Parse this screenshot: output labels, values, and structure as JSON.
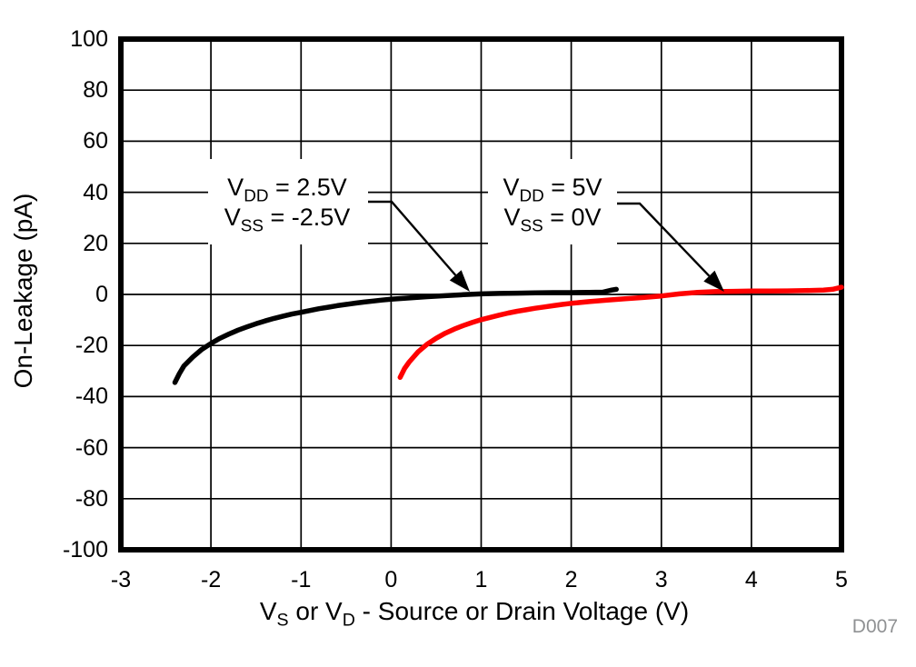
{
  "figure_id": "D007",
  "colors": {
    "black_series": "#000000",
    "red_series": "#ff0000",
    "grid": "#000000",
    "figure_id_gray": "#8f9193",
    "background": "#ffffff"
  },
  "chart_data": {
    "type": "line",
    "title": "",
    "ylabel": "On-Leakage (pA)",
    "xlabel_text": "VS or VD - Source or Drain Voltage (V)",
    "xlabel_parts": [
      {
        "t": "V"
      },
      {
        "s": "S"
      },
      {
        "t": " or V"
      },
      {
        "s": "D"
      },
      {
        "t": " - Source or Drain Voltage (V)"
      }
    ],
    "xlim": [
      -3,
      5
    ],
    "ylim": [
      -100,
      100
    ],
    "grid": true,
    "legend_position": "none (inline callout annotations)",
    "x_ticks": [
      -3,
      -2,
      -1,
      0,
      1,
      2,
      3,
      4,
      5
    ],
    "x_tick_labels": [
      "-3",
      "-2",
      "-1",
      "0",
      "1",
      "2",
      "3",
      "4",
      "5"
    ],
    "y_ticks": [
      100,
      80,
      60,
      40,
      20,
      0,
      -20,
      -40,
      -60,
      -80,
      -100
    ],
    "y_tick_labels": [
      "100",
      "80",
      "60",
      "40",
      "20",
      "0",
      "-20",
      "-40",
      "-60",
      "-80",
      "-100"
    ],
    "series": [
      {
        "name": "VDD = 2.5V, VSS = -2.5V",
        "color": "#000000",
        "points": [
          [
            -2.4,
            -34.5
          ],
          [
            -2.35,
            -31
          ],
          [
            -2.3,
            -28
          ],
          [
            -2.2,
            -24.5
          ],
          [
            -2.1,
            -21.5
          ],
          [
            -2.0,
            -19.2
          ],
          [
            -1.9,
            -17.2
          ],
          [
            -1.8,
            -15.5
          ],
          [
            -1.7,
            -14
          ],
          [
            -1.6,
            -12.7
          ],
          [
            -1.5,
            -11.5
          ],
          [
            -1.4,
            -10.4
          ],
          [
            -1.3,
            -9.4
          ],
          [
            -1.2,
            -8.5
          ],
          [
            -1.1,
            -7.7
          ],
          [
            -1.0,
            -7.0
          ],
          [
            -0.9,
            -6.3
          ],
          [
            -0.8,
            -5.6
          ],
          [
            -0.7,
            -5.0
          ],
          [
            -0.6,
            -4.4
          ],
          [
            -0.5,
            -3.9
          ],
          [
            -0.4,
            -3.4
          ],
          [
            -0.3,
            -3.0
          ],
          [
            -0.2,
            -2.6
          ],
          [
            -0.1,
            -2.2
          ],
          [
            0.0,
            -1.9
          ],
          [
            0.2,
            -1.4
          ],
          [
            0.4,
            -0.9
          ],
          [
            0.6,
            -0.5
          ],
          [
            0.8,
            -0.1
          ],
          [
            1.0,
            0.2
          ],
          [
            1.2,
            0.4
          ],
          [
            1.4,
            0.5
          ],
          [
            1.6,
            0.6
          ],
          [
            1.8,
            0.7
          ],
          [
            2.0,
            0.7
          ],
          [
            2.2,
            0.8
          ],
          [
            2.35,
            0.9
          ],
          [
            2.45,
            1.7
          ],
          [
            2.5,
            2.0
          ]
        ]
      },
      {
        "name": "VDD = 5V, VSS = 0V",
        "color": "#ff0000",
        "points": [
          [
            0.1,
            -32.5
          ],
          [
            0.15,
            -29
          ],
          [
            0.2,
            -26.5
          ],
          [
            0.3,
            -22.5
          ],
          [
            0.4,
            -19.5
          ],
          [
            0.5,
            -17.2
          ],
          [
            0.6,
            -15.2
          ],
          [
            0.7,
            -13.6
          ],
          [
            0.8,
            -12.2
          ],
          [
            0.9,
            -11.0
          ],
          [
            1.0,
            -9.9
          ],
          [
            1.1,
            -9.0
          ],
          [
            1.2,
            -8.1
          ],
          [
            1.3,
            -7.3
          ],
          [
            1.4,
            -6.6
          ],
          [
            1.5,
            -6.0
          ],
          [
            1.6,
            -5.4
          ],
          [
            1.7,
            -4.9
          ],
          [
            1.8,
            -4.4
          ],
          [
            1.9,
            -3.9
          ],
          [
            2.0,
            -3.5
          ],
          [
            2.2,
            -2.8
          ],
          [
            2.4,
            -2.2
          ],
          [
            2.6,
            -1.7
          ],
          [
            2.8,
            -1.2
          ],
          [
            3.0,
            -0.6
          ],
          [
            3.2,
            0.2
          ],
          [
            3.4,
            0.8
          ],
          [
            3.6,
            1.1
          ],
          [
            3.8,
            1.2
          ],
          [
            4.0,
            1.3
          ],
          [
            4.2,
            1.3
          ],
          [
            4.4,
            1.4
          ],
          [
            4.6,
            1.5
          ],
          [
            4.8,
            1.7
          ],
          [
            4.9,
            2.0
          ],
          [
            5.0,
            2.8
          ]
        ]
      }
    ],
    "annotations": [
      {
        "text": "VDD = 2.5V / VSS = -2.5V",
        "line1_parts": [
          {
            "t": "V"
          },
          {
            "s": "DD"
          },
          {
            "t": " = 2.5V"
          }
        ],
        "line2_parts": [
          {
            "t": "V"
          },
          {
            "s": "SS"
          },
          {
            "t": " = -2.5V"
          }
        ]
      },
      {
        "text": "VDD = 5V / VSS = 0V",
        "line1_parts": [
          {
            "t": "V"
          },
          {
            "s": "DD"
          },
          {
            "t": " = 5V"
          }
        ],
        "line2_parts": [
          {
            "t": "V"
          },
          {
            "s": "SS"
          },
          {
            "t": " = 0V"
          }
        ]
      }
    ]
  }
}
